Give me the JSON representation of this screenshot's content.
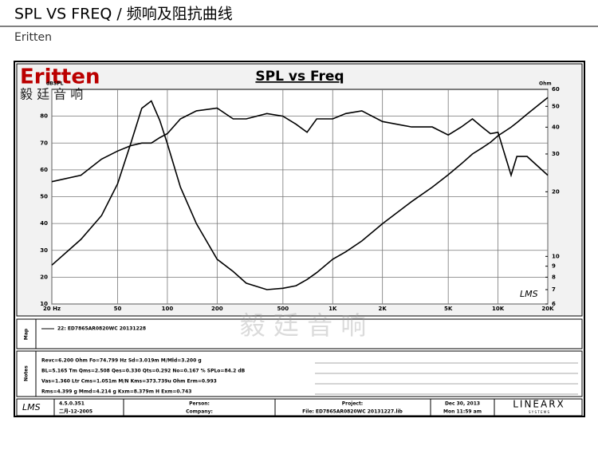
{
  "page": {
    "title": "SPL VS FREQ  /  频响及阻抗曲线",
    "brand": "Eritten",
    "logo": "Eritten",
    "logo_cn": "毅 廷 音 响",
    "watermark": "毅 廷 音 响",
    "map_label": "Map",
    "notes_label": "Notes",
    "notes": [
      "Revc=6.200 Ohm  Fo=74.799 Hz  Sd=3.019m M/Mld=3.200 g",
      "BL=5.165 Tm  Qms=2.508  Qes=0.330  Qts=0.292  No=0.167 %  SPLo=84.2 dB",
      "Vas=1.360 Ltr  Cms=1.051m M/N  Kms=373.739u Ohm  Erm=0.993",
      "Rms=4.399 g  Mmd=4.214 g  Kxm=8.379m H  Exm=0.743"
    ],
    "footer": {
      "lms": "LMS",
      "version": "4.5.0.351",
      "date_sw": "二月-12-2005",
      "person": "Person:",
      "company": "Company:",
      "project": "Project:",
      "file": "File: ED7865AR0820WC  20131227.lib",
      "date": "Dec 30, 2013",
      "time": "Mon 11:59 am",
      "linearx": "LINEARX",
      "systems": "S Y S T E M S"
    },
    "plot_mark": "LMS"
  },
  "chart_data": {
    "type": "line",
    "title": "SPL vs Freq",
    "ylabel": "dBSPL",
    "y2label": "Ohm",
    "xscale": "log",
    "y2scale": "log",
    "grid": true,
    "x": [
      20,
      30,
      40,
      50,
      60,
      70,
      80,
      90,
      100,
      120,
      150,
      200,
      250,
      300,
      400,
      500,
      600,
      700,
      800,
      1000,
      1200,
      1500,
      2000,
      3000,
      4000,
      5000,
      6000,
      7000,
      8000,
      9000,
      10000,
      12000,
      13000,
      15000,
      20000
    ],
    "series": [
      {
        "name": "22: ED7865AR0820WC  20131228",
        "color": "#000000",
        "values": [
          55.6,
          58,
          64,
          67,
          69,
          70,
          70,
          72,
          73.5,
          79,
          82,
          83,
          79,
          79,
          81,
          80,
          77,
          74,
          79,
          79,
          81,
          82,
          78,
          76,
          76,
          73,
          76,
          79,
          76,
          73.5,
          74,
          58,
          65,
          65,
          58
        ]
      },
      {
        "color": "#000000",
        "axis": "y2",
        "values": [
          9.1,
          12,
          15.5,
          21.8,
          33.5,
          49,
          53,
          43,
          33.5,
          21,
          14.2,
          9.7,
          8.5,
          7.5,
          7.0,
          7.1,
          7.3,
          7.8,
          8.4,
          9.7,
          10.5,
          11.8,
          14.2,
          18,
          21,
          24,
          27,
          30,
          32,
          34,
          36.5,
          40,
          42,
          46,
          55
        ]
      }
    ],
    "xlim": [
      20,
      20000
    ],
    "xticks": [
      {
        "value": 20,
        "label": "20 Hz"
      },
      50,
      100,
      200,
      500,
      {
        "value": 1000,
        "label": "1K"
      },
      {
        "value": 2000,
        "label": "2K"
      },
      {
        "value": 5000,
        "label": "5K"
      },
      {
        "value": 10000,
        "label": "10K"
      },
      {
        "value": 20000,
        "label": "20K"
      }
    ],
    "ylim": [
      10,
      90
    ],
    "yticks": [
      10,
      20,
      30,
      40,
      50,
      60,
      70,
      80
    ],
    "y2lim": [
      6,
      60
    ],
    "y2ticks": [
      6,
      7,
      8,
      9,
      10,
      20,
      30,
      40,
      50,
      60
    ]
  }
}
